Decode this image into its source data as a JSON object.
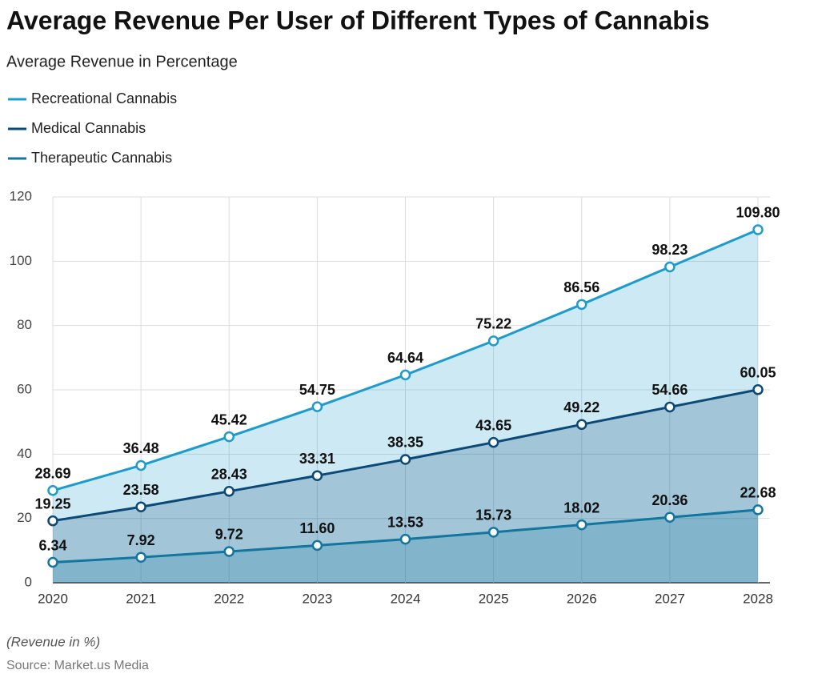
{
  "chart_data": {
    "type": "line",
    "title": "Average Revenue Per User of Different Types of Cannabis",
    "subtitle": "Average Revenue in Percentage",
    "note": "(Revenue in %)",
    "source": "Source: Market.us Media",
    "categories": [
      "2020",
      "2021",
      "2022",
      "2023",
      "2024",
      "2025",
      "2026",
      "2027",
      "2028"
    ],
    "series": [
      {
        "name": "Recreational Cannabis",
        "color": "#1d9bcf",
        "values": [
          28.69,
          36.48,
          45.42,
          54.75,
          64.64,
          75.22,
          86.56,
          98.23,
          109.8
        ],
        "value_labels": [
          "28.69",
          "36.48",
          "45.42",
          "54.75",
          "64.64",
          "75.22",
          "86.56",
          "98.23",
          "109.80"
        ]
      },
      {
        "name": "Medical Cannabis",
        "color": "#0b4a78",
        "values": [
          19.25,
          23.58,
          28.43,
          33.31,
          38.35,
          43.65,
          49.22,
          54.66,
          60.05
        ],
        "value_labels": [
          "19.25",
          "23.58",
          "28.43",
          "33.31",
          "38.35",
          "43.65",
          "49.22",
          "54.66",
          "60.05"
        ]
      },
      {
        "name": "Therapeutic Cannabis",
        "color": "#12769e",
        "values": [
          6.34,
          7.92,
          9.72,
          11.6,
          13.53,
          15.73,
          18.02,
          20.36,
          22.68
        ],
        "value_labels": [
          "6.34",
          "7.92",
          "9.72",
          "11.60",
          "13.53",
          "15.73",
          "18.02",
          "20.36",
          "22.68"
        ]
      }
    ],
    "ylim": [
      0,
      120
    ],
    "yticks": [
      0,
      20,
      40,
      60,
      80,
      100,
      120
    ],
    "grid": true,
    "area": true
  }
}
